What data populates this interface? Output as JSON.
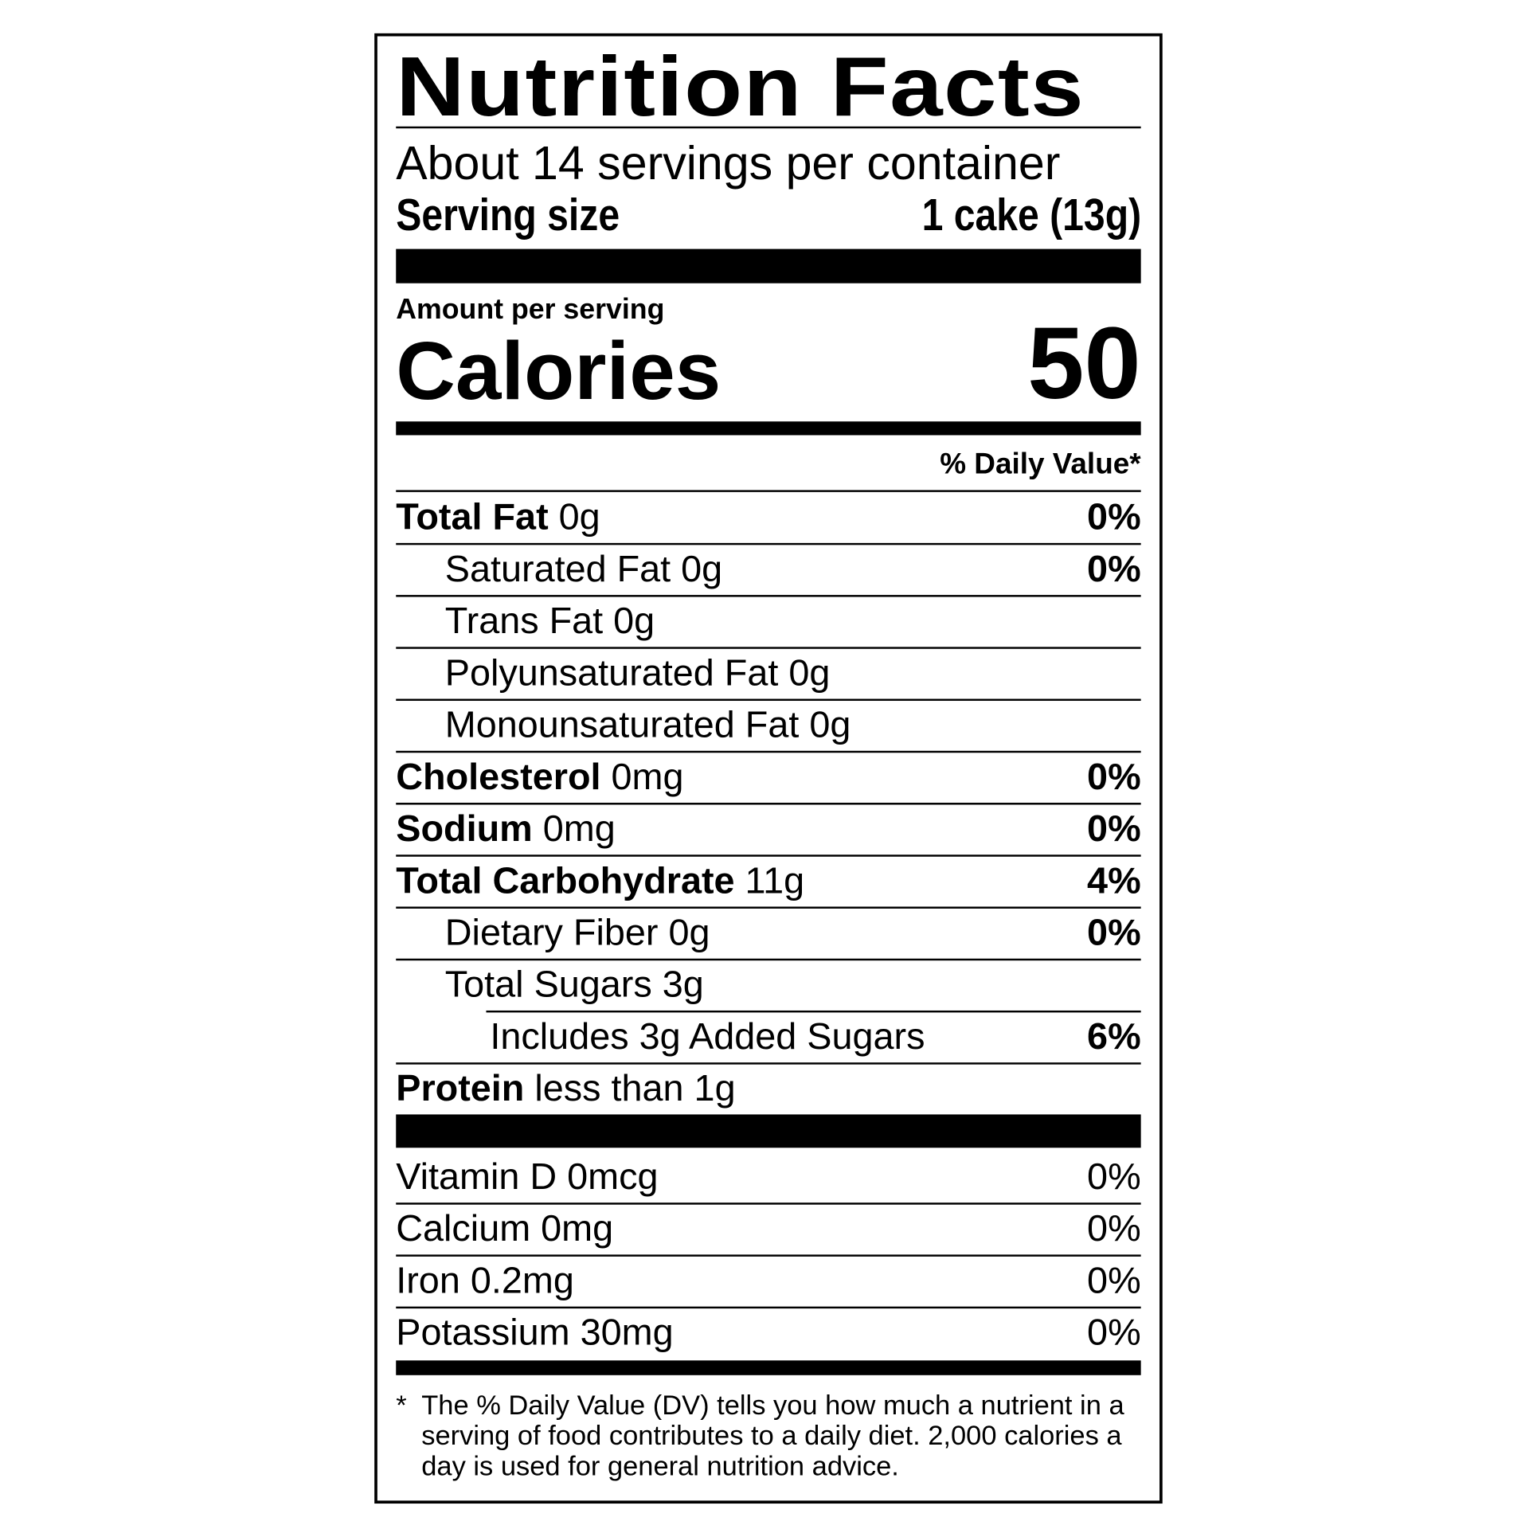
{
  "title": "Nutrition Facts",
  "servings_per_container": "About 14 servings per container",
  "serving_size_label": "Serving size",
  "serving_size_value": "1 cake (13g)",
  "amount_per_serving": "Amount per serving",
  "calories_label": "Calories",
  "calories_value": "50",
  "daily_value_header": "% Daily Value*",
  "nutrients": [
    {
      "name": "Total Fat",
      "amount": "0g",
      "dv": "0%",
      "bold": true,
      "indent": 0
    },
    {
      "name": "Saturated Fat",
      "amount": "0g",
      "dv": "0%",
      "bold": false,
      "indent": 1
    },
    {
      "name": "Trans Fat",
      "amount": "0g",
      "dv": "",
      "bold": false,
      "indent": 1
    },
    {
      "name": "Polyunsaturated Fat",
      "amount": "0g",
      "dv": "",
      "bold": false,
      "indent": 1
    },
    {
      "name": "Monounsaturated Fat",
      "amount": "0g",
      "dv": "",
      "bold": false,
      "indent": 1
    },
    {
      "name": "Cholesterol",
      "amount": "0mg",
      "dv": "0%",
      "bold": true,
      "indent": 0
    },
    {
      "name": "Sodium",
      "amount": "0mg",
      "dv": "0%",
      "bold": true,
      "indent": 0
    },
    {
      "name": "Total Carbohydrate",
      "amount": "11g",
      "dv": "4%",
      "bold": true,
      "indent": 0
    },
    {
      "name": "Dietary Fiber",
      "amount": "0g",
      "dv": "0%",
      "bold": false,
      "indent": 1
    },
    {
      "name": "Total Sugars",
      "amount": "3g",
      "dv": "",
      "bold": false,
      "indent": 1
    },
    {
      "name": "Includes 3g Added Sugars",
      "amount": "",
      "dv": "6%",
      "bold": false,
      "indent": 2
    },
    {
      "name": "Protein",
      "amount": "less than 1g",
      "dv": "",
      "bold": true,
      "indent": 0
    }
  ],
  "vitamins": [
    {
      "name": "Vitamin D",
      "amount": "0mcg",
      "dv": "0%"
    },
    {
      "name": "Calcium",
      "amount": "0mg",
      "dv": "0%"
    },
    {
      "name": "Iron",
      "amount": "0.2mg",
      "dv": "0%"
    },
    {
      "name": "Potassium",
      "amount": "30mg",
      "dv": "0%"
    }
  ],
  "footnote_marker": "*",
  "footnote": "The % Daily Value (DV) tells you how much a nutrient in a serving of food contributes to a daily diet. 2,000 calories a day is used for general nutrition advice."
}
